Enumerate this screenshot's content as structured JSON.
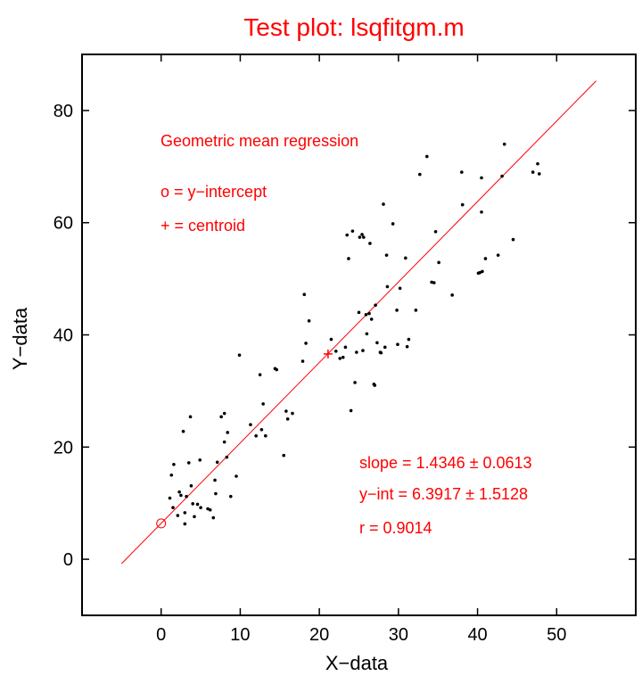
{
  "chart_data": {
    "type": "scatter",
    "title": "Test plot: lsqfitgm.m",
    "xlabel": "X−data",
    "ylabel": "Y−data",
    "xlim": [
      -10,
      60
    ],
    "ylim": [
      -10,
      90
    ],
    "x_ticks": [
      0,
      10,
      20,
      30,
      40,
      50
    ],
    "y_ticks": [
      0,
      20,
      40,
      60,
      80
    ],
    "x_tick_labels": [
      "0",
      "10",
      "20",
      "30",
      "40",
      "50"
    ],
    "y_tick_labels": [
      "0",
      "20",
      "40",
      "60",
      "80"
    ],
    "grid": false,
    "colors": {
      "accent": "#ff0000",
      "points": "#000000",
      "axes": "#000000"
    },
    "annotations": {
      "method": "Geometric mean regression",
      "intercept_legend": "o = y−intercept",
      "centroid_legend": "+ = centroid",
      "slope": "slope = 1.4346 ± 0.0613",
      "yint": "y−int = 6.3917 ± 1.5128",
      "r": "r = 0.9014"
    },
    "fit_line": {
      "slope": 1.4346,
      "intercept": 6.3917,
      "x_range": [
        -5,
        55
      ]
    },
    "intercept_point": {
      "x": 0,
      "y": 6.3917
    },
    "centroid_point": {
      "x": 21.1,
      "y": 36.6
    },
    "points": [
      {
        "x": 1.1,
        "y": 10.9
      },
      {
        "x": 1.3,
        "y": 15.0
      },
      {
        "x": 1.6,
        "y": 16.9
      },
      {
        "x": 1.5,
        "y": 9.2
      },
      {
        "x": 2.1,
        "y": 7.8
      },
      {
        "x": 2.3,
        "y": 12.0
      },
      {
        "x": 2.5,
        "y": 11.4
      },
      {
        "x": 2.8,
        "y": 22.8
      },
      {
        "x": 3.0,
        "y": 8.3
      },
      {
        "x": 3.0,
        "y": 6.3
      },
      {
        "x": 3.2,
        "y": 11.2
      },
      {
        "x": 3.5,
        "y": 17.2
      },
      {
        "x": 3.7,
        "y": 25.4
      },
      {
        "x": 3.8,
        "y": 13.1
      },
      {
        "x": 4.0,
        "y": 9.9
      },
      {
        "x": 4.2,
        "y": 7.6
      },
      {
        "x": 4.6,
        "y": 9.8
      },
      {
        "x": 4.9,
        "y": 17.7
      },
      {
        "x": 5.0,
        "y": 9.2
      },
      {
        "x": 5.9,
        "y": 9.0
      },
      {
        "x": 6.2,
        "y": 8.8
      },
      {
        "x": 6.6,
        "y": 7.4
      },
      {
        "x": 6.8,
        "y": 14.1
      },
      {
        "x": 6.9,
        "y": 11.7
      },
      {
        "x": 7.1,
        "y": 17.3
      },
      {
        "x": 7.6,
        "y": 25.4
      },
      {
        "x": 8.0,
        "y": 26.0
      },
      {
        "x": 8.0,
        "y": 20.9
      },
      {
        "x": 8.3,
        "y": 18.2
      },
      {
        "x": 8.4,
        "y": 22.6
      },
      {
        "x": 8.8,
        "y": 11.2
      },
      {
        "x": 9.5,
        "y": 14.8
      },
      {
        "x": 9.9,
        "y": 36.4
      },
      {
        "x": 11.3,
        "y": 24.0
      },
      {
        "x": 12.0,
        "y": 22.0
      },
      {
        "x": 12.5,
        "y": 32.9
      },
      {
        "x": 12.7,
        "y": 23.1
      },
      {
        "x": 12.9,
        "y": 27.7
      },
      {
        "x": 13.2,
        "y": 22.0
      },
      {
        "x": 14.4,
        "y": 34.0
      },
      {
        "x": 14.6,
        "y": 33.8
      },
      {
        "x": 15.5,
        "y": 18.5
      },
      {
        "x": 15.8,
        "y": 26.4
      },
      {
        "x": 16.0,
        "y": 25.0
      },
      {
        "x": 16.6,
        "y": 26.0
      },
      {
        "x": 17.9,
        "y": 35.3
      },
      {
        "x": 18.1,
        "y": 47.2
      },
      {
        "x": 18.3,
        "y": 38.5
      },
      {
        "x": 18.7,
        "y": 42.5
      },
      {
        "x": 21.5,
        "y": 39.2
      },
      {
        "x": 22.1,
        "y": 37.1
      },
      {
        "x": 22.6,
        "y": 35.8
      },
      {
        "x": 23.0,
        "y": 36.0
      },
      {
        "x": 23.3,
        "y": 37.8
      },
      {
        "x": 23.5,
        "y": 57.8
      },
      {
        "x": 23.7,
        "y": 53.6
      },
      {
        "x": 24.0,
        "y": 26.5
      },
      {
        "x": 24.2,
        "y": 58.5
      },
      {
        "x": 24.5,
        "y": 31.5
      },
      {
        "x": 24.7,
        "y": 36.9
      },
      {
        "x": 25.0,
        "y": 44.0
      },
      {
        "x": 25.1,
        "y": 57.4
      },
      {
        "x": 25.4,
        "y": 57.9
      },
      {
        "x": 25.5,
        "y": 37.2
      },
      {
        "x": 25.6,
        "y": 57.4
      },
      {
        "x": 25.9,
        "y": 43.6
      },
      {
        "x": 26.0,
        "y": 40.2
      },
      {
        "x": 26.3,
        "y": 43.8
      },
      {
        "x": 26.4,
        "y": 56.3
      },
      {
        "x": 26.6,
        "y": 42.8
      },
      {
        "x": 26.9,
        "y": 31.2
      },
      {
        "x": 27.0,
        "y": 31.0
      },
      {
        "x": 27.1,
        "y": 45.3
      },
      {
        "x": 27.3,
        "y": 38.6
      },
      {
        "x": 27.7,
        "y": 36.9
      },
      {
        "x": 27.8,
        "y": 36.8
      },
      {
        "x": 28.1,
        "y": 63.3
      },
      {
        "x": 28.3,
        "y": 37.8
      },
      {
        "x": 28.5,
        "y": 54.2
      },
      {
        "x": 28.6,
        "y": 48.6
      },
      {
        "x": 29.3,
        "y": 59.8
      },
      {
        "x": 29.8,
        "y": 44.4
      },
      {
        "x": 29.9,
        "y": 38.3
      },
      {
        "x": 30.2,
        "y": 48.3
      },
      {
        "x": 30.9,
        "y": 53.7
      },
      {
        "x": 31.1,
        "y": 37.9
      },
      {
        "x": 31.3,
        "y": 39.2
      },
      {
        "x": 32.2,
        "y": 44.4
      },
      {
        "x": 32.7,
        "y": 68.6
      },
      {
        "x": 33.6,
        "y": 71.8
      },
      {
        "x": 34.2,
        "y": 49.4
      },
      {
        "x": 34.5,
        "y": 49.3
      },
      {
        "x": 34.7,
        "y": 58.4
      },
      {
        "x": 35.1,
        "y": 52.9
      },
      {
        "x": 36.8,
        "y": 47.1
      },
      {
        "x": 38.0,
        "y": 69.0
      },
      {
        "x": 38.1,
        "y": 63.2
      },
      {
        "x": 40.1,
        "y": 51.0
      },
      {
        "x": 40.3,
        "y": 51.1
      },
      {
        "x": 40.5,
        "y": 68.0
      },
      {
        "x": 40.5,
        "y": 61.9
      },
      {
        "x": 40.6,
        "y": 51.3
      },
      {
        "x": 41.0,
        "y": 53.6
      },
      {
        "x": 42.6,
        "y": 54.2
      },
      {
        "x": 43.1,
        "y": 68.3
      },
      {
        "x": 43.4,
        "y": 74.0
      },
      {
        "x": 44.5,
        "y": 57.0
      },
      {
        "x": 47.0,
        "y": 69.0
      },
      {
        "x": 47.6,
        "y": 70.5
      },
      {
        "x": 47.8,
        "y": 68.7
      }
    ]
  }
}
